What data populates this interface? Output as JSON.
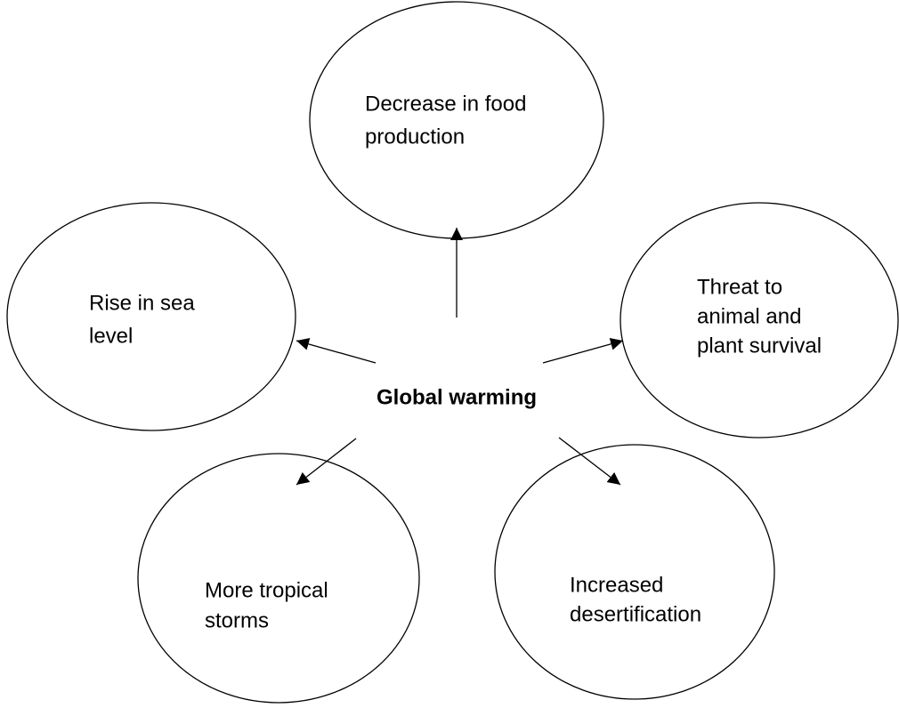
{
  "center": {
    "label": "Global warming"
  },
  "nodes": [
    {
      "lines": [
        "Decrease in food",
        "production"
      ]
    },
    {
      "lines": [
        "Rise in sea",
        "level"
      ]
    },
    {
      "lines": [
        "Threat to",
        "animal and",
        "plant survival"
      ]
    },
    {
      "lines": [
        "More tropical",
        "storms"
      ]
    },
    {
      "lines": [
        "Increased",
        "desertification"
      ]
    }
  ]
}
